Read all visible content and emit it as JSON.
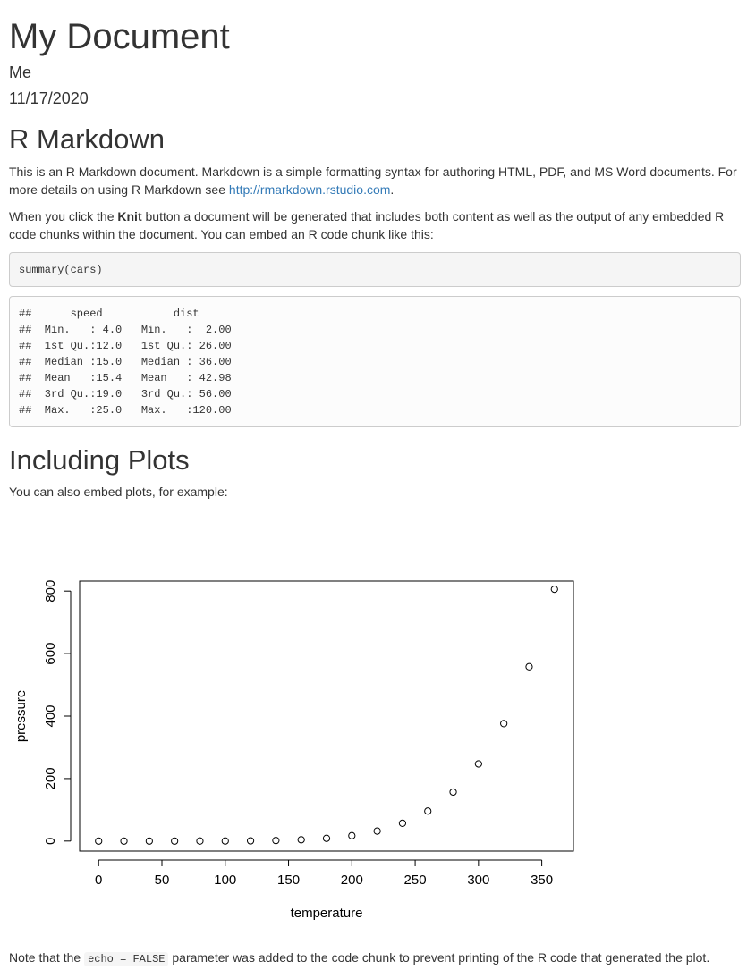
{
  "doc": {
    "title": "My Document",
    "author": "Me",
    "date": "11/17/2020"
  },
  "section1": {
    "heading": "R Markdown",
    "p1_text": "This is an R Markdown document. Markdown is a simple formatting syntax for authoring HTML, PDF, and MS Word documents. For more details on using R Markdown see ",
    "p1_link": "http://rmarkdown.rstudio.com",
    "p1_end": ".",
    "p2_start": "When you click the ",
    "p2_bold": "Knit",
    "p2_end": " button a document will be generated that includes both content as well as the output of any embedded R code chunks within the document. You can embed an R code chunk like this:",
    "code": "summary(cars)",
    "output": "##      speed           dist       \n##  Min.   : 4.0   Min.   :  2.00  \n##  1st Qu.:12.0   1st Qu.: 26.00  \n##  Median :15.0   Median : 36.00  \n##  Mean   :15.4   Mean   : 42.98  \n##  3rd Qu.:19.0   3rd Qu.: 56.00  \n##  Max.   :25.0   Max.   :120.00  "
  },
  "section2": {
    "heading": "Including Plots",
    "p3_text": "You can also embed plots, for example:",
    "p4_start": "Note that the ",
    "p4_code": "echo = FALSE",
    "p4_end": " parameter was added to the code chunk to prevent printing of the R code that generated the plot."
  },
  "chart_data": {
    "type": "scatter",
    "title": "",
    "xlabel": "temperature",
    "ylabel": "pressure",
    "xlim": [
      -15,
      375
    ],
    "ylim": [
      -32,
      832
    ],
    "x_ticks": [
      0,
      50,
      100,
      150,
      200,
      250,
      300,
      350
    ],
    "y_ticks": [
      0,
      200,
      400,
      600,
      800
    ],
    "x": [
      0,
      20,
      40,
      60,
      80,
      100,
      120,
      140,
      160,
      180,
      200,
      220,
      240,
      260,
      280,
      300,
      320,
      340,
      360
    ],
    "y": [
      0.0002,
      0.0012,
      0.006,
      0.03,
      0.09,
      0.27,
      0.75,
      1.85,
      4.2,
      8.8,
      17.3,
      32.1,
      57,
      96,
      157,
      247,
      376,
      558,
      806
    ],
    "marker": "open-circle",
    "grid": false
  }
}
